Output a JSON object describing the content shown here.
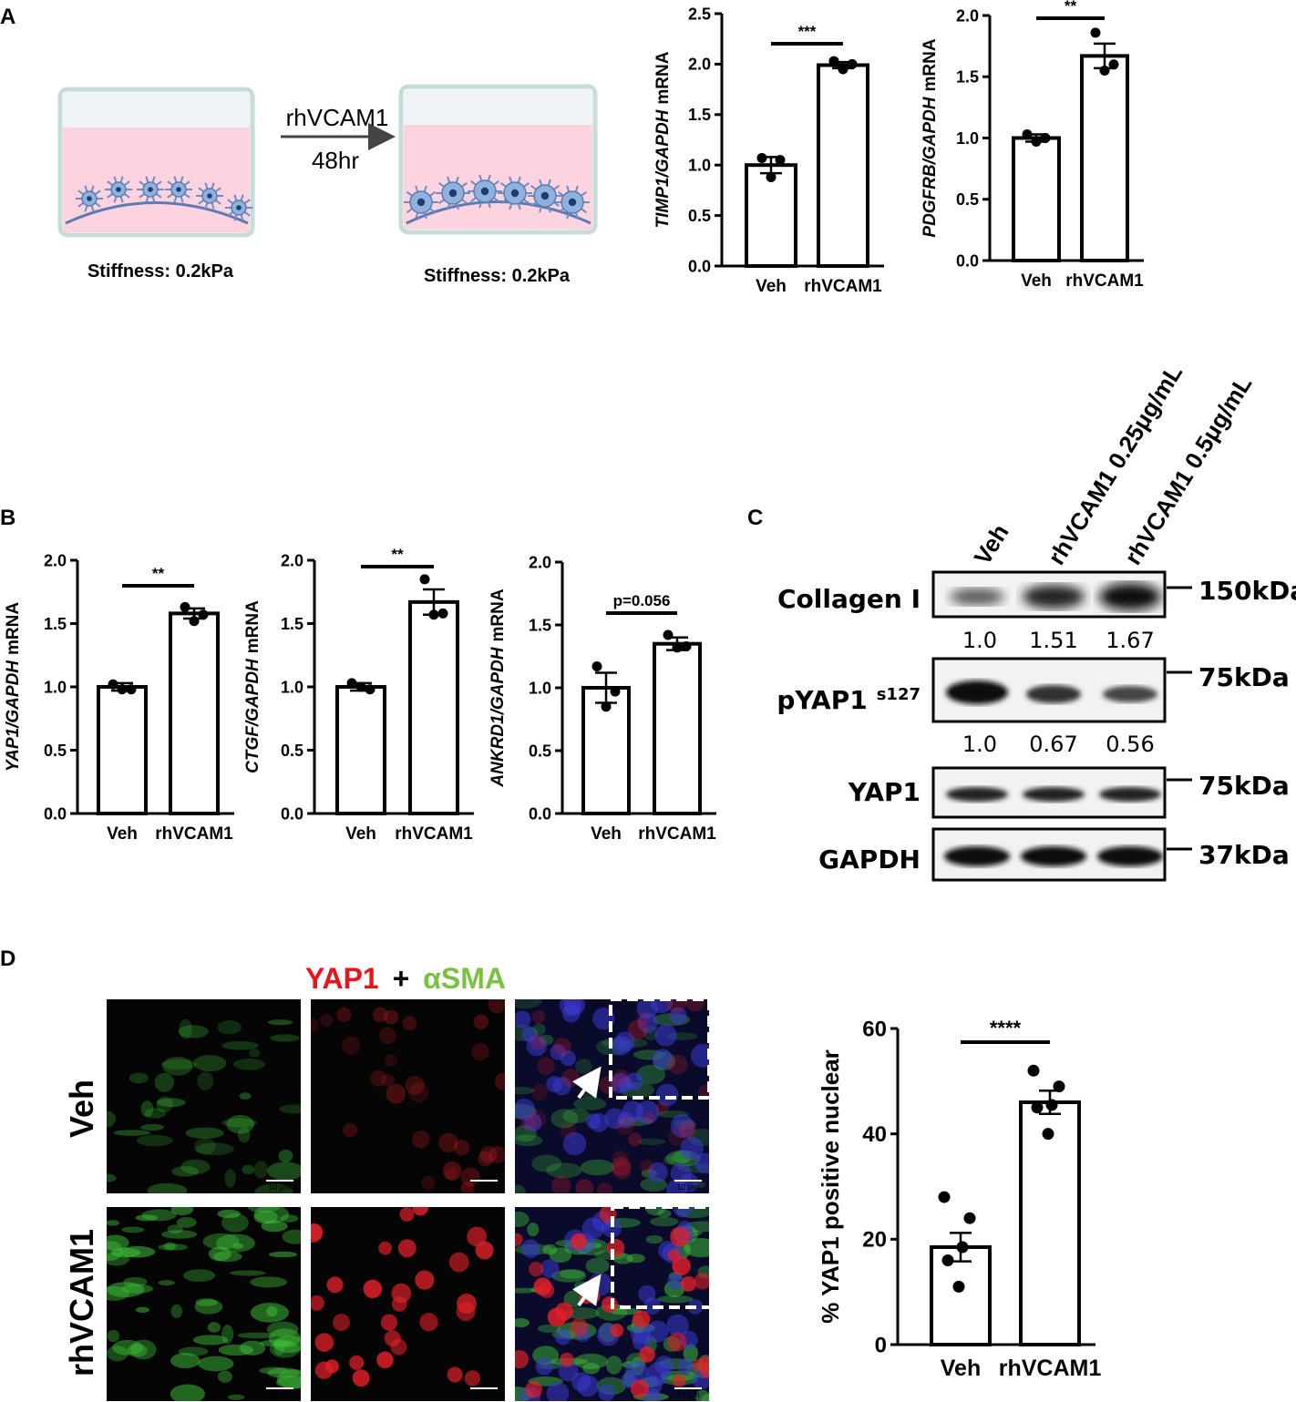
{
  "panel_labels": [
    "A",
    "B",
    "C",
    "D"
  ],
  "schematic": {
    "treatment": "rhVCAM1",
    "time": "48hr",
    "stiffness_before": "Stiffness: 0.2kPa",
    "stiffness_after": "Stiffness: 0.2kPa"
  },
  "blot": {
    "lanes": [
      "Veh",
      "rhVCAM1 0.25μg/mL",
      "rhVCAM1 0.5μg/mL"
    ],
    "rows": [
      {
        "label": "Collagen I",
        "size": "150kDa",
        "quant": [
          "1.0",
          "1.51",
          "1.67"
        ]
      },
      {
        "label": "pYAP1",
        "superscript": "s127",
        "size": "75kDa",
        "quant": [
          "1.0",
          "0.67",
          "0.56"
        ]
      },
      {
        "label": "YAP1",
        "size": "75kDa"
      },
      {
        "label": "GAPDH",
        "size": "37kDa"
      }
    ]
  },
  "microscopy": {
    "title": [
      "YAP1",
      "+",
      "αSMA"
    ],
    "title_colors": [
      "#e8141c",
      "#000000",
      "#7ac143"
    ],
    "rows": [
      "Veh",
      "rhVCAM1"
    ],
    "scale_bar": "10 μm"
  },
  "chart_data": [
    {
      "type": "bar",
      "ylabel": [
        {
          "text": "TIMP1/GAPDH",
          "italic": true
        },
        {
          "text": "mRNA"
        }
      ],
      "categories": [
        "Veh",
        "rhVCAM1"
      ],
      "values": [
        1.0,
        1.99
      ],
      "errors": [
        0.08,
        0.03
      ],
      "points": [
        [
          1.07,
          1.05,
          0.88
        ],
        [
          2.03,
          2.0,
          1.95
        ]
      ],
      "color": "#ffffff",
      "edge_color": "#000000",
      "ylim": [
        0,
        2.5
      ],
      "yticks": [
        {
          "value": 0,
          "label": "0.0"
        },
        {
          "value": 0.5,
          "label": "0.5"
        },
        {
          "value": 1,
          "label": "1.0"
        },
        {
          "value": 1.5,
          "label": "1.5"
        },
        {
          "value": 2,
          "label": "2.0"
        },
        {
          "value": 2.5,
          "label": "2.5"
        }
      ],
      "annotation": "***"
    },
    {
      "type": "bar",
      "ylabel": [
        {
          "text": "PDGFRB/GAPDH",
          "italic": true
        },
        {
          "text": "mRNA"
        }
      ],
      "categories": [
        "Veh",
        "rhVCAM1"
      ],
      "values": [
        1.0,
        1.67
      ],
      "errors": [
        0.03,
        0.1
      ],
      "points": [
        [
          1.03,
          1.0,
          0.97
        ],
        [
          1.86,
          1.6,
          1.55
        ]
      ],
      "color": "#ffffff",
      "edge_color": "#000000",
      "ylim": [
        0,
        2
      ],
      "yticks": [
        {
          "value": 0,
          "label": "0.0"
        },
        {
          "value": 0.5,
          "label": "0.5"
        },
        {
          "value": 1,
          "label": "1.0"
        },
        {
          "value": 1.5,
          "label": "1.5"
        },
        {
          "value": 2,
          "label": "2.0"
        }
      ],
      "annotation": "**"
    },
    {
      "type": "bar",
      "ylabel": [
        {
          "text": "YAP1/GAPDH",
          "italic": true
        },
        {
          "text": "mRNA"
        }
      ],
      "categories": [
        "Veh",
        "rhVCAM1"
      ],
      "values": [
        1.0,
        1.58
      ],
      "errors": [
        0.03,
        0.04
      ],
      "points": [
        [
          1.02,
          0.98,
          0.98
        ],
        [
          1.63,
          1.57,
          1.52
        ]
      ],
      "color": "#ffffff",
      "edge_color": "#000000",
      "ylim": [
        0,
        2
      ],
      "yticks": [
        {
          "value": 0,
          "label": "0.0"
        },
        {
          "value": 0.5,
          "label": "0.5"
        },
        {
          "value": 1,
          "label": "1.0"
        },
        {
          "value": 1.5,
          "label": "1.5"
        },
        {
          "value": 2,
          "label": "2.0"
        }
      ],
      "annotation": "**"
    },
    {
      "type": "bar",
      "ylabel": [
        {
          "text": "CTGF/GAPDH",
          "italic": true
        },
        {
          "text": "mRNA"
        }
      ],
      "categories": [
        "Veh",
        "rhVCAM1"
      ],
      "values": [
        1.0,
        1.67
      ],
      "errors": [
        0.03,
        0.1
      ],
      "points": [
        [
          1.03,
          0.98,
          1.0
        ],
        [
          1.85,
          1.58,
          1.57
        ]
      ],
      "color": "#ffffff",
      "edge_color": "#000000",
      "ylim": [
        0,
        2
      ],
      "yticks": [
        {
          "value": 0,
          "label": "0.0"
        },
        {
          "value": 0.5,
          "label": "0.5"
        },
        {
          "value": 1,
          "label": "1.0"
        },
        {
          "value": 1.5,
          "label": "1.5"
        },
        {
          "value": 2,
          "label": "2.0"
        }
      ],
      "annotation": "**"
    },
    {
      "type": "bar",
      "ylabel": [
        {
          "text": "ANKRD1/GAPDH",
          "italic": true
        },
        {
          "text": "mRNA"
        }
      ],
      "categories": [
        "Veh",
        "rhVCAM1"
      ],
      "values": [
        1.0,
        1.35
      ],
      "errors": [
        0.12,
        0.05
      ],
      "points": [
        [
          1.17,
          0.97,
          0.85
        ],
        [
          1.42,
          1.33,
          1.32
        ]
      ],
      "color": "#ffffff",
      "edge_color": "#000000",
      "ylim": [
        0,
        2
      ],
      "yticks": [
        {
          "value": 0,
          "label": "0.0"
        },
        {
          "value": 0.5,
          "label": "0.5"
        },
        {
          "value": 1,
          "label": "1.0"
        },
        {
          "value": 1.5,
          "label": "1.5"
        },
        {
          "value": 2,
          "label": "2.0"
        }
      ],
      "annotation": "p=0.056"
    },
    {
      "type": "bar",
      "ylabel": [
        {
          "text": "% YAP1 positive nuclear"
        }
      ],
      "categories": [
        "Veh",
        "rhVCAM1"
      ],
      "values": [
        18.5,
        46
      ],
      "errors": [
        2.7,
        2.2
      ],
      "points": [
        [
          28,
          24,
          18.5,
          16,
          11
        ],
        [
          52,
          49,
          45.5,
          45,
          40
        ]
      ],
      "color": "#ffffff",
      "edge_color": "#000000",
      "ylim": [
        0,
        60
      ],
      "yticks": [
        0,
        20,
        40,
        60
      ],
      "annotation": "****"
    }
  ]
}
